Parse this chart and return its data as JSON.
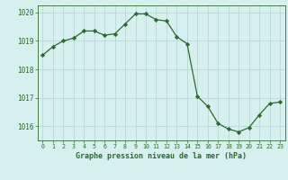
{
  "hours": [
    0,
    1,
    2,
    3,
    4,
    5,
    6,
    7,
    8,
    9,
    10,
    11,
    12,
    13,
    14,
    15,
    16,
    17,
    18,
    19,
    20,
    21,
    22,
    23
  ],
  "pressure": [
    1018.5,
    1018.8,
    1019.0,
    1019.1,
    1019.35,
    1019.35,
    1019.2,
    1019.25,
    1019.6,
    1019.95,
    1019.95,
    1019.75,
    1019.7,
    1019.15,
    1018.9,
    1017.05,
    1016.7,
    1016.1,
    1015.9,
    1015.8,
    1015.95,
    1016.4,
    1016.8,
    1016.85
  ],
  "line_color": "#2d6a2d",
  "marker": "D",
  "marker_size": 2.2,
  "bg_color": "#d6f0f0",
  "grid_color": "#b8d8d8",
  "tick_color": "#2d6a2d",
  "label_color": "#2d6a2d",
  "xlabel": "Graphe pression niveau de la mer (hPa)",
  "ylim": [
    1015.5,
    1020.25
  ],
  "yticks": [
    1016,
    1017,
    1018,
    1019,
    1020
  ],
  "xticks": [
    0,
    1,
    2,
    3,
    4,
    5,
    6,
    7,
    8,
    9,
    10,
    11,
    12,
    13,
    14,
    15,
    16,
    17,
    18,
    19,
    20,
    21,
    22,
    23
  ]
}
